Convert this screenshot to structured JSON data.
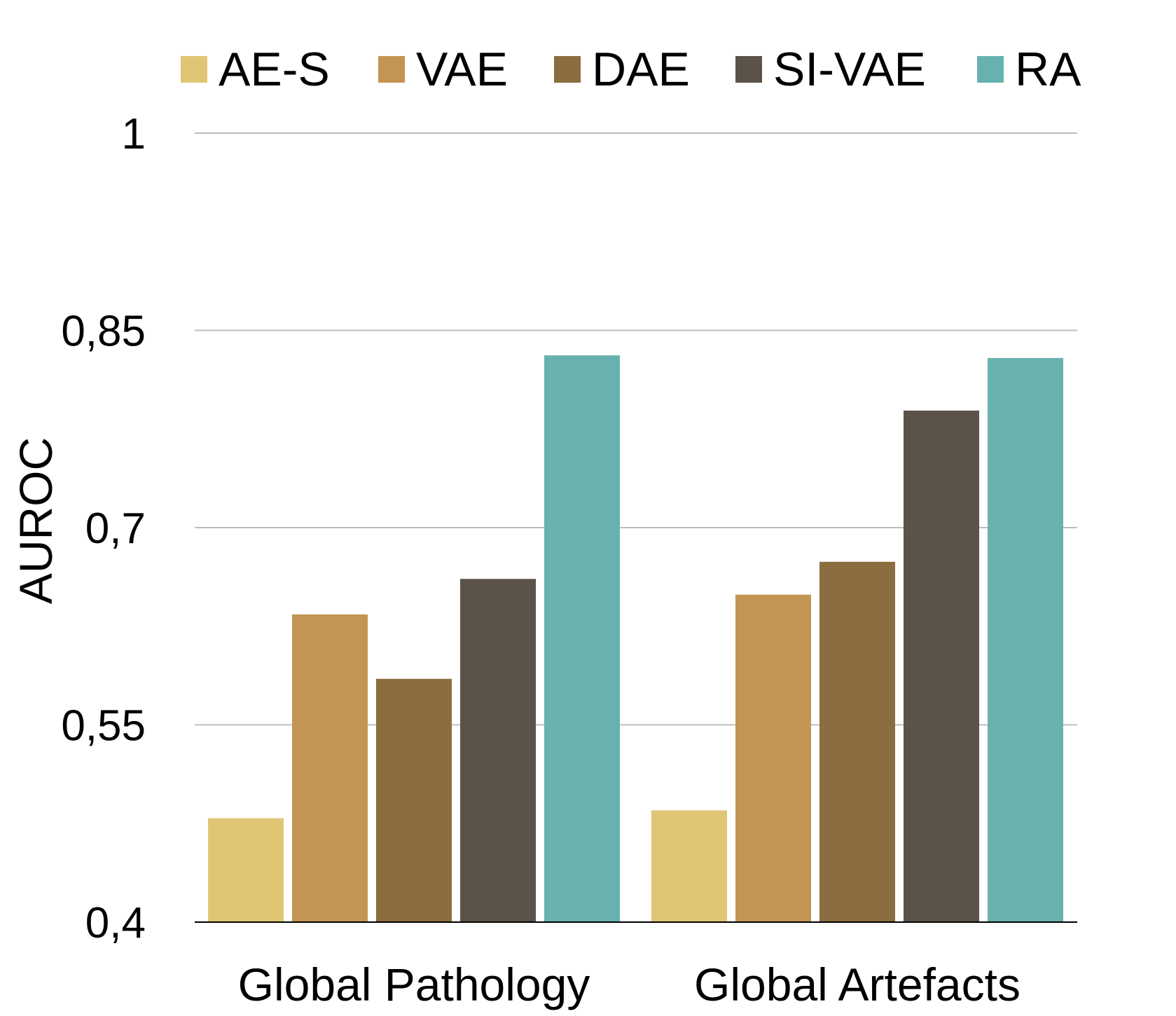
{
  "chart_data": {
    "type": "bar",
    "title": "",
    "xlabel": "",
    "ylabel": "AUROC",
    "categories": [
      "Global Pathology",
      "Global Artefacts"
    ],
    "series": [
      {
        "name": "AE-S",
        "color": "#e0c674",
        "values": [
          0.479,
          0.485
        ]
      },
      {
        "name": "VAE",
        "color": "#c39553",
        "values": [
          0.634,
          0.649
        ]
      },
      {
        "name": "DAE",
        "color": "#8b6d3f",
        "values": [
          0.585,
          0.674
        ]
      },
      {
        "name": "SI-VAE",
        "color": "#5b5349",
        "values": [
          0.661,
          0.789
        ]
      },
      {
        "name": "RA",
        "color": "#67b2ae",
        "values": [
          0.831,
          0.829
        ]
      }
    ],
    "ylim": [
      0.4,
      1.0
    ],
    "yticks": [
      0.4,
      0.55,
      0.7,
      0.85,
      1.0
    ],
    "ytick_labels": [
      "0,4",
      "0,55",
      "0,7",
      "0,85",
      "1"
    ],
    "grid": true,
    "legend_position": "top"
  }
}
